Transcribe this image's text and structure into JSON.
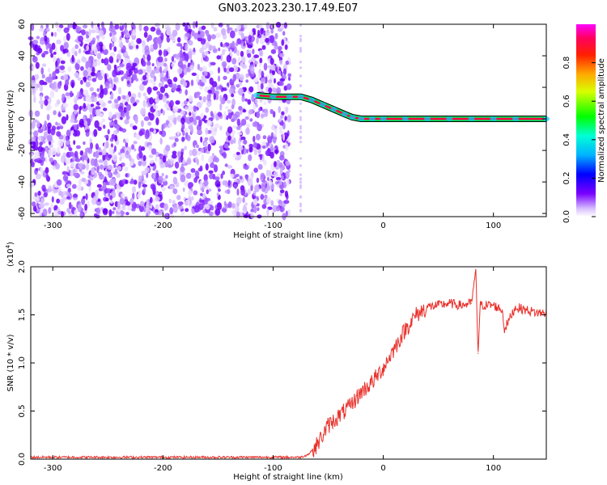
{
  "figure": {
    "title": "GN03.2023.230.17.49.E07"
  },
  "colorbar": {
    "label": "Normalized spectral amplitude",
    "ticks": [
      "0.0",
      "0.2",
      "0.4",
      "0.6",
      "0.8"
    ],
    "tick_values": [
      0.0,
      0.2,
      0.4,
      0.6,
      0.8
    ],
    "range": [
      0,
      1
    ],
    "colormap": [
      "#ffffff",
      "#7a00ff",
      "#0000ff",
      "#00ffff",
      "#00ff00",
      "#ffff00",
      "#ff0000",
      "#ff00ff"
    ]
  },
  "chart_data": [
    {
      "type": "heatmap",
      "title": "",
      "xlabel": "Height of straight line (km)",
      "ylabel": "Frequency (Hz)",
      "xlim": [
        -320,
        148
      ],
      "ylim": [
        -62,
        60
      ],
      "xticks": [
        -300,
        -200,
        -100,
        0,
        100
      ],
      "xtick_labels": [
        "-300",
        "-200",
        "-100",
        "0",
        "100"
      ],
      "yticks": [
        -60,
        -40,
        -20,
        0,
        20,
        40,
        60
      ],
      "ytick_labels": [
        "-60",
        "-40",
        "-20",
        "0",
        "20",
        "40",
        "60"
      ],
      "noise_region_x": [
        -320,
        -85
      ],
      "signal_trace": {
        "x": [
          -115,
          -100,
          -85,
          -75,
          -65,
          -55,
          -45,
          -35,
          -28,
          -20,
          -10,
          0,
          20,
          40,
          60,
          80,
          100,
          120,
          148
        ],
        "y": [
          15,
          14,
          14,
          14,
          12,
          9,
          6,
          3,
          1,
          0,
          0,
          0,
          0,
          0,
          0,
          0,
          0,
          0,
          0
        ]
      },
      "grid": false
    },
    {
      "type": "line",
      "title": "",
      "xlabel": "Height of straight line (km)",
      "ylabel": "SNR (10 * v/v)",
      "y_multiplier_label": "(x10",
      "y_multiplier_exp": "4",
      "xlim": [
        -320,
        148
      ],
      "ylim": [
        0,
        2.0
      ],
      "xticks": [
        -300,
        -200,
        -100,
        0,
        100
      ],
      "xtick_labels": [
        "-300",
        "-200",
        "-100",
        "0",
        "100"
      ],
      "yticks": [
        0,
        0.5,
        1.0,
        1.5,
        2.0
      ],
      "ytick_labels": [
        "0.0",
        "0.5",
        "1.0",
        "1.5",
        "2.0"
      ],
      "series": [
        {
          "color": "#e8302a",
          "x": [
            -320,
            -200,
            -100,
            -75,
            -68,
            -60,
            -50,
            -40,
            -30,
            -20,
            -10,
            0,
            10,
            20,
            30,
            40,
            50,
            60,
            70,
            80,
            84,
            86,
            88,
            100,
            108,
            110,
            120,
            130,
            140,
            148
          ],
          "y": [
            0.02,
            0.02,
            0.02,
            0.02,
            0.05,
            0.15,
            0.35,
            0.45,
            0.55,
            0.7,
            0.8,
            0.95,
            1.15,
            1.35,
            1.5,
            1.58,
            1.6,
            1.62,
            1.6,
            1.62,
            1.95,
            1.1,
            1.6,
            1.6,
            1.55,
            1.35,
            1.58,
            1.55,
            1.52,
            1.52
          ]
        }
      ],
      "grid": false
    }
  ]
}
